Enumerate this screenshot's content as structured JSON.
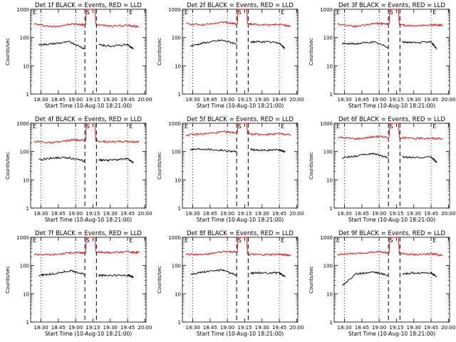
{
  "chart_data": [
    {
      "type": "line",
      "title": "Det 1f BLACK = Events, RED = LLD",
      "xlabel": "Start Time (10-Aug-10 18:21:00)",
      "ylabel": "Counts/sec",
      "yscale": "log",
      "ylim": [
        1,
        1000
      ],
      "x_ticks": [
        "18:30",
        "18:45",
        "19:00",
        "19:15",
        "19:30",
        "19:45",
        "20:00"
      ],
      "y_ticks": [
        "1",
        "10",
        "100",
        "1000"
      ],
      "markers": {
        "start_label": "E",
        "middle_label": "S",
        "end_label": "E"
      },
      "series": [
        {
          "color": "#dd0000",
          "segments": [
            {
              "x": [
                "18:24",
                "18:40",
                "18:58",
                "19:08"
              ],
              "y": [
                300,
                240,
                300,
                280
              ]
            },
            {
              "x": [
                "19:18",
                "19:30",
                "19:45",
                "19:55"
              ],
              "y": [
                290,
                250,
                270,
                240
              ]
            }
          ]
        },
        {
          "color": "#000000",
          "segments": [
            {
              "x": [
                "18:28",
                "18:40",
                "18:55",
                "19:08"
              ],
              "y": [
                55,
                60,
                70,
                40
              ]
            },
            {
              "x": [
                "19:20",
                "19:30",
                "19:45",
                "19:50"
              ],
              "y": [
                55,
                50,
                55,
                40
              ]
            }
          ]
        }
      ]
    },
    {
      "type": "line",
      "title": "Det 2f BLACK = Events, RED = LLD",
      "xlabel": "Start Time (10-Aug-10 18:21:00)",
      "ylabel": "Counts/sec",
      "yscale": "log",
      "ylim": [
        1,
        1000
      ],
      "x_ticks": [
        "18:30",
        "18:45",
        "19:00",
        "19:15",
        "19:30",
        "19:45",
        "20:00"
      ],
      "y_ticks": [
        "1",
        "10",
        "100",
        "1000"
      ],
      "markers": {
        "start_label": "E",
        "middle_label": "S",
        "end_label": "E"
      },
      "series": [
        {
          "color": "#dd0000",
          "segments": [
            {
              "x": [
                "18:24",
                "18:40",
                "18:58",
                "19:08"
              ],
              "y": [
                310,
                280,
                350,
                300
              ]
            },
            {
              "x": [
                "19:18",
                "19:30",
                "19:45",
                "19:55"
              ],
              "y": [
                300,
                280,
                290,
                250
              ]
            }
          ]
        },
        {
          "color": "#000000",
          "segments": [
            {
              "x": [
                "18:28",
                "18:40",
                "18:55",
                "19:08"
              ],
              "y": [
                50,
                65,
                80,
                60
              ]
            },
            {
              "x": [
                "19:20",
                "19:30",
                "19:45",
                "19:50"
              ],
              "y": [
                70,
                70,
                65,
                40
              ]
            }
          ]
        }
      ]
    },
    {
      "type": "line",
      "title": "Det 3f BLACK = Events, RED = LLD",
      "xlabel": "Start Time (10-Aug-10 18:21:00)",
      "ylabel": "Counts/sec",
      "yscale": "log",
      "ylim": [
        1,
        1000
      ],
      "x_ticks": [
        "18:30",
        "18:45",
        "19:00",
        "19:15",
        "19:30",
        "19:45",
        "20:00"
      ],
      "y_ticks": [
        "1",
        "10",
        "100",
        "1000"
      ],
      "markers": {
        "start_label": "E",
        "middle_label": "S",
        "end_label": "E"
      },
      "series": [
        {
          "color": "#dd0000",
          "segments": [
            {
              "x": [
                "18:24",
                "18:40",
                "18:58",
                "19:08"
              ],
              "y": [
                300,
                250,
                320,
                300
              ]
            },
            {
              "x": [
                "19:18",
                "19:30",
                "19:45",
                "19:55"
              ],
              "y": [
                280,
                260,
                280,
                270
              ]
            }
          ]
        },
        {
          "color": "#000000",
          "segments": [
            {
              "x": [
                "18:28",
                "18:40",
                "18:55",
                "19:08"
              ],
              "y": [
                60,
                60,
                70,
                45
              ]
            },
            {
              "x": [
                "19:20",
                "19:30",
                "19:45",
                "19:50"
              ],
              "y": [
                70,
                65,
                70,
                40
              ]
            }
          ]
        }
      ]
    },
    {
      "type": "line",
      "title": "Det 4f BLACK = Events, RED = LLD",
      "xlabel": "Start Time (10-Aug-10 18:21:00)",
      "ylabel": "Counts/sec",
      "yscale": "log",
      "ylim": [
        1,
        1000
      ],
      "x_ticks": [
        "18:30",
        "18:45",
        "19:00",
        "19:15",
        "19:30",
        "19:45",
        "20:00"
      ],
      "y_ticks": [
        "1",
        "10",
        "100",
        "1000"
      ],
      "markers": {
        "start_label": "E",
        "middle_label": "S",
        "end_label": "E"
      },
      "series": [
        {
          "color": "#dd0000",
          "segments": [
            {
              "x": [
                "18:24",
                "18:40",
                "18:58",
                "19:08"
              ],
              "y": [
                230,
                200,
                260,
                240
              ]
            },
            {
              "x": [
                "19:18",
                "19:30",
                "19:45",
                "19:55"
              ],
              "y": [
                230,
                220,
                230,
                220
              ]
            }
          ]
        },
        {
          "color": "#000000",
          "segments": [
            {
              "x": [
                "18:28",
                "18:40",
                "18:55",
                "19:08"
              ],
              "y": [
                50,
                60,
                60,
                45
              ]
            },
            {
              "x": [
                "19:20",
                "19:30",
                "19:45",
                "19:50"
              ],
              "y": [
                50,
                50,
                55,
                40
              ]
            }
          ]
        }
      ]
    },
    {
      "type": "line",
      "title": "Det 5f BLACK = Events, RED = LLD",
      "xlabel": "Start Time (10-Aug-10 18:21:00)",
      "ylabel": "Counts/sec",
      "yscale": "log",
      "ylim": [
        1,
        1000
      ],
      "x_ticks": [
        "18:30",
        "18:45",
        "19:00",
        "19:15",
        "19:30",
        "19:45",
        "20:00"
      ],
      "y_ticks": [
        "1",
        "10",
        "100",
        "1000"
      ],
      "markers": {
        "start_label": "E",
        "middle_label": "S",
        "end_label": "E"
      },
      "series": [
        {
          "color": "#dd0000",
          "segments": [
            {
              "x": [
                "18:24",
                "18:40",
                "18:58",
                "19:08"
              ],
              "y": [
                380,
                420,
                500,
                460
              ]
            },
            {
              "x": [
                "19:18",
                "19:30",
                "19:45",
                "19:55"
              ],
              "y": [
                420,
                400,
                430,
                380
              ]
            }
          ]
        },
        {
          "color": "#000000",
          "segments": [
            {
              "x": [
                "18:28",
                "18:40",
                "18:55",
                "19:08"
              ],
              "y": [
                120,
                125,
                110,
                100
              ]
            },
            {
              "x": [
                "19:20",
                "19:30",
                "19:45",
                "19:50"
              ],
              "y": [
                120,
                110,
                115,
                100
              ]
            }
          ]
        }
      ]
    },
    {
      "type": "line",
      "title": "Det 6f BLACK = Events, RED = LLD",
      "xlabel": "Start Time (10-Aug-10 18:21:00)",
      "ylabel": "Counts/sec",
      "yscale": "log",
      "ylim": [
        1,
        1000
      ],
      "x_ticks": [
        "18:30",
        "18:45",
        "19:00",
        "19:15",
        "19:30",
        "19:45",
        "20:00"
      ],
      "y_ticks": [
        "1",
        "10",
        "100",
        "1000"
      ],
      "markers": {
        "start_label": "E",
        "middle_label": "S",
        "end_label": "E"
      },
      "series": [
        {
          "color": "#dd0000",
          "segments": [
            {
              "x": [
                "18:24",
                "18:40",
                "18:58",
                "19:08"
              ],
              "y": [
                320,
                280,
                340,
                320
              ]
            },
            {
              "x": [
                "19:18",
                "19:30",
                "19:45",
                "19:55"
              ],
              "y": [
                310,
                290,
                300,
                280
              ]
            }
          ]
        },
        {
          "color": "#000000",
          "segments": [
            {
              "x": [
                "18:28",
                "18:40",
                "18:55",
                "19:08"
              ],
              "y": [
                60,
                70,
                85,
                60
              ]
            },
            {
              "x": [
                "19:20",
                "19:30",
                "19:45",
                "19:50"
              ],
              "y": [
                65,
                60,
                65,
                40
              ]
            }
          ]
        }
      ]
    },
    {
      "type": "line",
      "title": "Det 7f BLACK = Events, RED = LLD",
      "xlabel": "Start Time (10-Aug-10 18:21:00)",
      "ylabel": "Counts/sec",
      "yscale": "log",
      "ylim": [
        1,
        1000
      ],
      "x_ticks": [
        "18:30",
        "18:45",
        "19:00",
        "19:15",
        "19:30",
        "19:45",
        "20:00"
      ],
      "y_ticks": [
        "1",
        "10",
        "100",
        "1000"
      ],
      "markers": {
        "start_label": "E",
        "middle_label": "S",
        "end_label": "E"
      },
      "series": [
        {
          "color": "#dd0000",
          "segments": [
            {
              "x": [
                "18:24",
                "18:40",
                "18:58",
                "19:08"
              ],
              "y": [
                250,
                240,
                290,
                280
              ]
            },
            {
              "x": [
                "19:18",
                "19:30",
                "19:45",
                "19:55"
              ],
              "y": [
                300,
                290,
                300,
                290
              ]
            }
          ]
        },
        {
          "color": "#000000",
          "segments": [
            {
              "x": [
                "18:28",
                "18:40",
                "18:55",
                "19:08"
              ],
              "y": [
                45,
                50,
                65,
                50
              ]
            },
            {
              "x": [
                "19:20",
                "19:30",
                "19:45",
                "19:50"
              ],
              "y": [
                45,
                45,
                45,
                40
              ]
            }
          ]
        }
      ]
    },
    {
      "type": "line",
      "title": "Det 8f BLACK = Events, RED = LLD",
      "xlabel": "Start Time (10-Aug-10 18:21:00)",
      "ylabel": "Counts/sec",
      "yscale": "log",
      "ylim": [
        1,
        1000
      ],
      "x_ticks": [
        "18:30",
        "18:45",
        "19:00",
        "19:15",
        "19:30",
        "19:45",
        "20:00"
      ],
      "y_ticks": [
        "1",
        "10",
        "100",
        "1000"
      ],
      "markers": {
        "start_label": "E",
        "middle_label": "S",
        "end_label": "E"
      },
      "series": [
        {
          "color": "#dd0000",
          "segments": [
            {
              "x": [
                "18:24",
                "18:40",
                "18:58",
                "19:08"
              ],
              "y": [
                250,
                240,
                320,
                300
              ]
            },
            {
              "x": [
                "19:18",
                "19:30",
                "19:45",
                "19:55"
              ],
              "y": [
                250,
                240,
                250,
                230
              ]
            }
          ]
        },
        {
          "color": "#000000",
          "segments": [
            {
              "x": [
                "18:28",
                "18:40",
                "18:55",
                "19:08"
              ],
              "y": [
                50,
                60,
                70,
                45
              ]
            },
            {
              "x": [
                "19:20",
                "19:30",
                "19:45",
                "19:50"
              ],
              "y": [
                55,
                55,
                55,
                40
              ]
            }
          ]
        }
      ]
    },
    {
      "type": "line",
      "title": "Det 9f BLACK = Events, RED = LLD",
      "xlabel": "Start Time (10-Aug-10 18:21:00)",
      "ylabel": "Counts/sec",
      "yscale": "log",
      "ylim": [
        1,
        1000
      ],
      "x_ticks": [
        "18:30",
        "18:45",
        "19:00",
        "19:15",
        "19:30",
        "19:45",
        "20:00"
      ],
      "y_ticks": [
        "1",
        "10",
        "100",
        "1000"
      ],
      "markers": {
        "start_label": "E",
        "middle_label": "S",
        "end_label": "E"
      },
      "series": [
        {
          "color": "#dd0000",
          "segments": [
            {
              "x": [
                "18:24",
                "18:40",
                "18:58",
                "19:08"
              ],
              "y": [
                250,
                260,
                310,
                280
              ]
            },
            {
              "x": [
                "19:18",
                "19:30",
                "19:45",
                "19:55"
              ],
              "y": [
                260,
                240,
                260,
                230
              ]
            }
          ]
        },
        {
          "color": "#000000",
          "segments": [
            {
              "x": [
                "18:28",
                "18:40",
                "18:55",
                "19:08"
              ],
              "y": [
                20,
                50,
                60,
                45
              ]
            },
            {
              "x": [
                "19:20",
                "19:30",
                "19:45",
                "19:50"
              ],
              "y": [
                50,
                55,
                55,
                40
              ]
            }
          ]
        }
      ]
    }
  ]
}
